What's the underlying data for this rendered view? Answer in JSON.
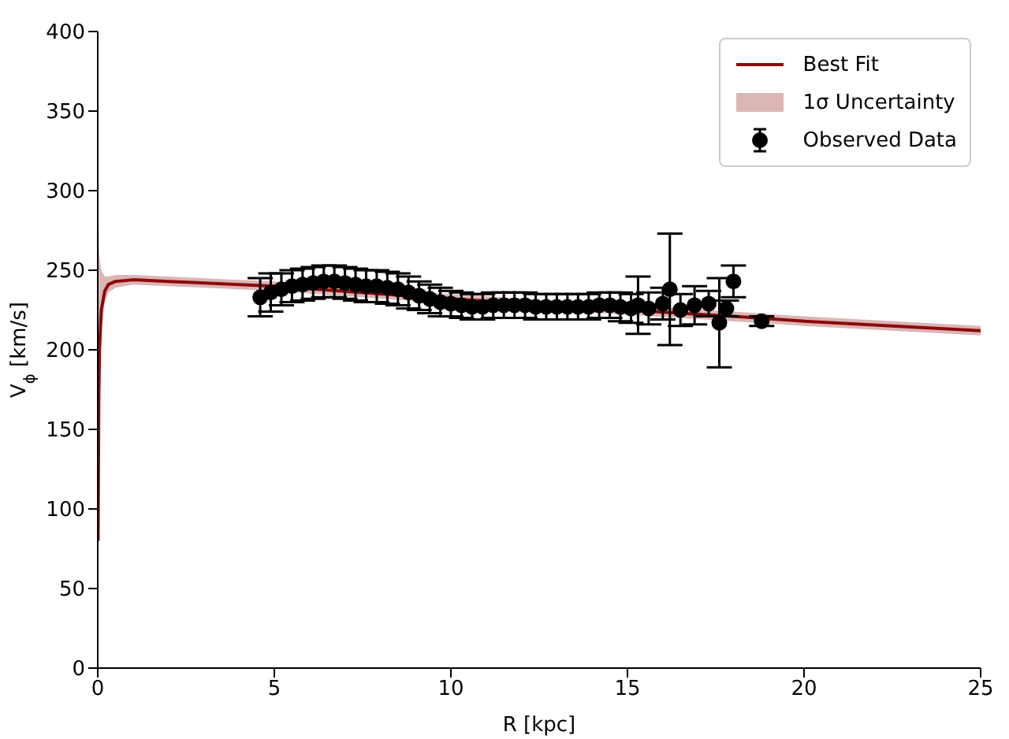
{
  "chart_data": {
    "type": "scatter",
    "xlabel": "R [kpc]",
    "ylabel": "V$_{ϕ}$ [km/s]",
    "xlim": [
      0,
      25
    ],
    "xticks": [
      0,
      5,
      10,
      15,
      20,
      25
    ],
    "ylim": [
      0,
      400
    ],
    "yticks": [
      0,
      50,
      100,
      150,
      200,
      250,
      300,
      350,
      400
    ],
    "grid": false,
    "legend": "top right",
    "annotations": [
      "1σ Uncertainty"
    ],
    "series": [
      {
        "type": "line",
        "name": "Best Fit",
        "color": "#8b0a0a",
        "x": [
          0.01,
          0.03,
          0.05,
          0.1,
          0.2,
          0.3,
          0.5,
          1,
          2,
          5,
          10,
          15,
          18,
          20,
          25
        ],
        "values": [
          80,
          170,
          200,
          225,
          237,
          241,
          243,
          244,
          243,
          240,
          232,
          225,
          221,
          218,
          212
        ],
        "lower": [
          60,
          150,
          185,
          212,
          230,
          236,
          239,
          241,
          240,
          237,
          229,
          222,
          218,
          215,
          209
        ],
        "upper": [
          310,
          265,
          258,
          250,
          246,
          246,
          247,
          247,
          246,
          243,
          235,
          228,
          224,
          221,
          215
        ]
      },
      {
        "marker": "circle",
        "name": "Observed Data",
        "color": "#000000",
        "x": [
          4.6,
          4.9,
          5.2,
          5.5,
          5.8,
          6.1,
          6.4,
          6.7,
          7.0,
          7.3,
          7.6,
          7.9,
          8.2,
          8.5,
          8.8,
          9.1,
          9.4,
          9.7,
          10.0,
          10.3,
          10.6,
          10.9,
          11.2,
          11.5,
          11.8,
          12.1,
          12.4,
          12.7,
          13.0,
          13.3,
          13.6,
          13.9,
          14.2,
          14.5,
          14.8,
          15.1,
          15.3,
          15.6,
          16.0,
          16.2,
          16.5,
          16.9,
          17.3,
          17.6,
          17.8,
          18.0,
          18.8
        ],
        "values": [
          233,
          236,
          238,
          240,
          241,
          242,
          243,
          243,
          242,
          241,
          240,
          240,
          239,
          238,
          236,
          234,
          232,
          230,
          229,
          228,
          227,
          227,
          228,
          228,
          228,
          228,
          227,
          227,
          227,
          227,
          227,
          227,
          228,
          228,
          227,
          226,
          228,
          226,
          229,
          238,
          225,
          228,
          229,
          217,
          226,
          243,
          218
        ],
        "errors": [
          12,
          12,
          10,
          10,
          10,
          10,
          10,
          10,
          10,
          10,
          10,
          10,
          10,
          10,
          10,
          9,
          9,
          9,
          8,
          8,
          8,
          8,
          8,
          8,
          8,
          8,
          8,
          8,
          8,
          8,
          8,
          8,
          8,
          8,
          9,
          9,
          18,
          10,
          10,
          35,
          10,
          12,
          8,
          28,
          5,
          10,
          3
        ]
      }
    ]
  }
}
